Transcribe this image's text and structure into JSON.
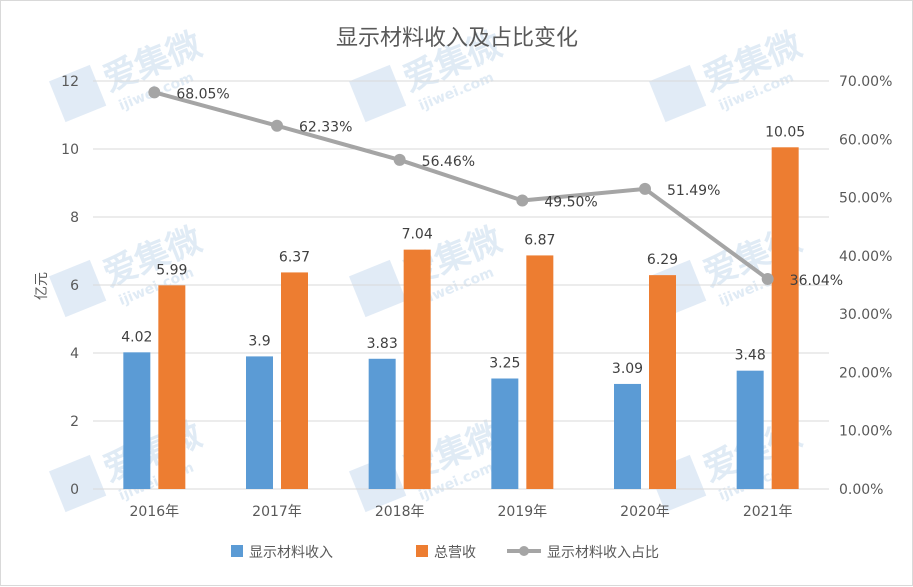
{
  "colors": {
    "series_blue": "#5b9bd5",
    "series_orange": "#ed7d31",
    "series_gray": "#a5a5a5",
    "grid": "#d9d9d9",
    "text": "#595959"
  },
  "watermark": {
    "brand": "爱集微",
    "url": "ijiwei.com"
  },
  "chart_data": {
    "type": "bar",
    "title": "显示材料收入及占比变化",
    "ylabel": "亿元",
    "categories": [
      "2016年",
      "2017年",
      "2018年",
      "2019年",
      "2020年",
      "2021年"
    ],
    "ylim": [
      0,
      12
    ],
    "y_ticks": [
      "0",
      "2",
      "4",
      "6",
      "8",
      "10",
      "12"
    ],
    "y2lim": [
      0,
      70
    ],
    "y2_ticks": [
      "0.00%",
      "10.00%",
      "20.00%",
      "30.00%",
      "40.00%",
      "50.00%",
      "60.00%",
      "70.00%"
    ],
    "grid": true,
    "legend_position": "bottom",
    "series": [
      {
        "name": "显示材料收入",
        "kind": "bar",
        "axis": "left",
        "values": [
          4.02,
          3.9,
          3.83,
          3.25,
          3.09,
          3.48
        ],
        "labels": [
          "4.02",
          "3.9",
          "3.83",
          "3.25",
          "3.09",
          "3.48"
        ]
      },
      {
        "name": "总营收",
        "kind": "bar",
        "axis": "left",
        "values": [
          5.99,
          6.37,
          7.04,
          6.87,
          6.29,
          10.05
        ],
        "labels": [
          "5.99",
          "6.37",
          "7.04",
          "6.87",
          "6.29",
          "10.05"
        ]
      },
      {
        "name": "显示材料收入占比",
        "kind": "line",
        "axis": "right",
        "values": [
          68.05,
          62.33,
          56.46,
          49.5,
          51.49,
          36.04
        ],
        "labels": [
          "68.05%",
          "62.33%",
          "56.46%",
          "49.50%",
          "51.49%",
          "36.04%"
        ]
      }
    ]
  }
}
